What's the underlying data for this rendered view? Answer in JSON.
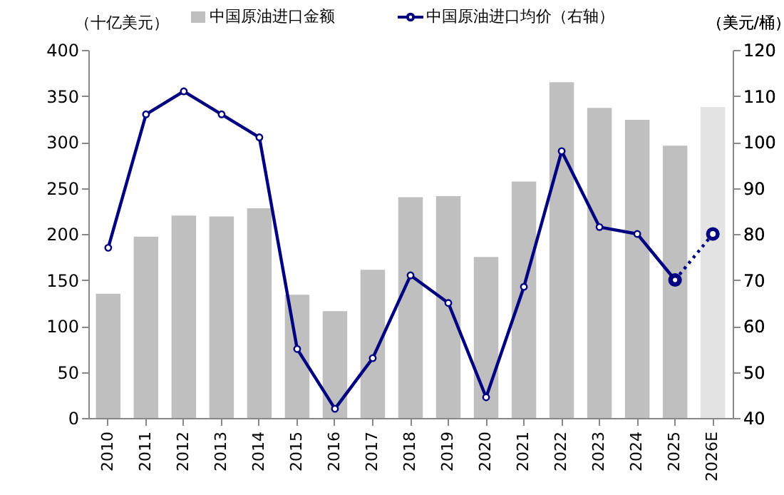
{
  "chart_data": {
    "type": "bar",
    "ylabel": "（十亿美元）",
    "y2label": "（美元/桶）",
    "categories": [
      "2010",
      "2011",
      "2012",
      "2013",
      "2014",
      "2015",
      "2016",
      "2017",
      "2018",
      "2019",
      "2020",
      "2021",
      "2022",
      "2023",
      "2024",
      "2025",
      "2026E"
    ],
    "ylim": [
      0,
      400
    ],
    "yticks": [
      0,
      50,
      100,
      150,
      200,
      250,
      300,
      350,
      400
    ],
    "y2lim": [
      40,
      120
    ],
    "y2ticks": [
      40,
      50,
      60,
      70,
      80,
      90,
      100,
      110,
      120
    ],
    "grid": false,
    "legend": "top",
    "series": [
      {
        "name": "中国原油进口金额",
        "color": "#bfbfbf",
        "colors": [
          "#bfbfbf",
          "#bfbfbf",
          "#bfbfbf",
          "#bfbfbf",
          "#bfbfbf",
          "#bfbfbf",
          "#bfbfbf",
          "#bfbfbf",
          "#bfbfbf",
          "#bfbfbf",
          "#bfbfbf",
          "#bfbfbf",
          "#bfbfbf",
          "#bfbfbf",
          "#bfbfbf",
          "#bfbfbf",
          "#e3e3e3"
        ],
        "values": [
          135,
          197,
          220,
          219,
          228,
          134,
          116,
          161,
          240,
          241,
          175,
          257,
          365,
          337,
          324,
          296,
          338
        ]
      },
      {
        "name": "中国原油进口均价（右轴）",
        "type": "line",
        "axis": "y2",
        "color": "#000080",
        "marker": "circle",
        "line_style": "solid",
        "values": [
          77,
          106,
          111,
          106,
          101,
          55,
          42,
          53,
          71,
          65,
          44.5,
          68.5,
          98,
          81.5,
          80,
          70,
          null
        ]
      },
      {
        "type": "line",
        "axis": "y2",
        "color": "#000080",
        "marker": "circle",
        "line_style": "dotted",
        "values": [
          null,
          null,
          null,
          null,
          null,
          null,
          null,
          null,
          null,
          null,
          null,
          null,
          null,
          null,
          null,
          70,
          80
        ]
      }
    ]
  }
}
